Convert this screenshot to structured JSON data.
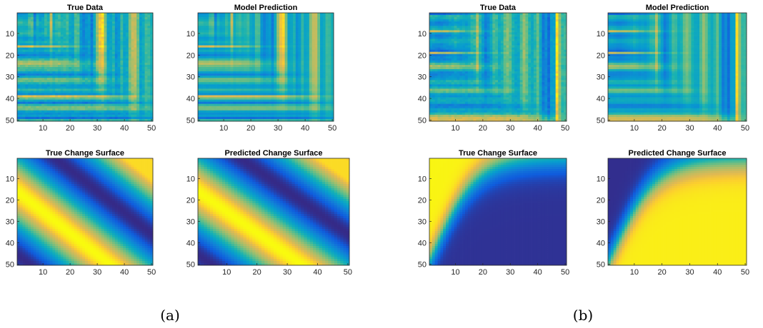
{
  "captions": [
    "(a)",
    "(b)"
  ],
  "chart_data": [
    {
      "type": "heatmap",
      "title": "True Data",
      "pattern": "data_a_true",
      "x": [
        1,
        50
      ],
      "y": [
        1,
        50
      ],
      "xticks": [
        10,
        20,
        30,
        40,
        50
      ],
      "yticks": [
        10,
        20,
        30,
        40,
        50
      ],
      "colormap": "parula"
    },
    {
      "type": "heatmap",
      "title": "Model Prediction",
      "pattern": "data_a_pred",
      "x": [
        1,
        50
      ],
      "y": [
        1,
        50
      ],
      "xticks": [
        10,
        20,
        30,
        40,
        50
      ],
      "yticks": [
        10,
        20,
        30,
        40,
        50
      ],
      "colormap": "parula"
    },
    {
      "type": "heatmap",
      "title": "True Change Surface",
      "pattern": "surf_a_true",
      "x": [
        1,
        50
      ],
      "y": [
        1,
        50
      ],
      "xticks": [
        10,
        20,
        30,
        40,
        50
      ],
      "yticks": [
        10,
        20,
        30,
        40,
        50
      ],
      "colormap": "parula"
    },
    {
      "type": "heatmap",
      "title": "Predicted Change Surface",
      "pattern": "surf_a_pred",
      "x": [
        1,
        50
      ],
      "y": [
        1,
        50
      ],
      "xticks": [
        10,
        20,
        30,
        40,
        50
      ],
      "yticks": [
        10,
        20,
        30,
        40,
        50
      ],
      "colormap": "parula"
    },
    {
      "type": "heatmap",
      "title": "True Data",
      "pattern": "data_b_true",
      "x": [
        1,
        50
      ],
      "y": [
        1,
        50
      ],
      "xticks": [
        10,
        20,
        30,
        40,
        50
      ],
      "yticks": [
        10,
        20,
        30,
        40,
        50
      ],
      "colormap": "parula"
    },
    {
      "type": "heatmap",
      "title": "Model Prediction",
      "pattern": "data_b_pred",
      "x": [
        1,
        50
      ],
      "y": [
        1,
        50
      ],
      "xticks": [
        10,
        20,
        30,
        40,
        50
      ],
      "yticks": [
        10,
        20,
        30,
        40,
        50
      ],
      "colormap": "parula"
    },
    {
      "type": "heatmap",
      "title": "True Change Surface",
      "pattern": "surf_b_true",
      "x": [
        1,
        50
      ],
      "y": [
        1,
        50
      ],
      "xticks": [
        10,
        20,
        30,
        40,
        50
      ],
      "yticks": [
        10,
        20,
        30,
        40,
        50
      ],
      "colormap": "parula"
    },
    {
      "type": "heatmap",
      "title": "Predicted Change Surface",
      "pattern": "surf_b_pred",
      "x": [
        1,
        50
      ],
      "y": [
        1,
        50
      ],
      "xticks": [
        10,
        20,
        30,
        40,
        50
      ],
      "yticks": [
        10,
        20,
        30,
        40,
        50
      ],
      "colormap": "parula"
    }
  ]
}
